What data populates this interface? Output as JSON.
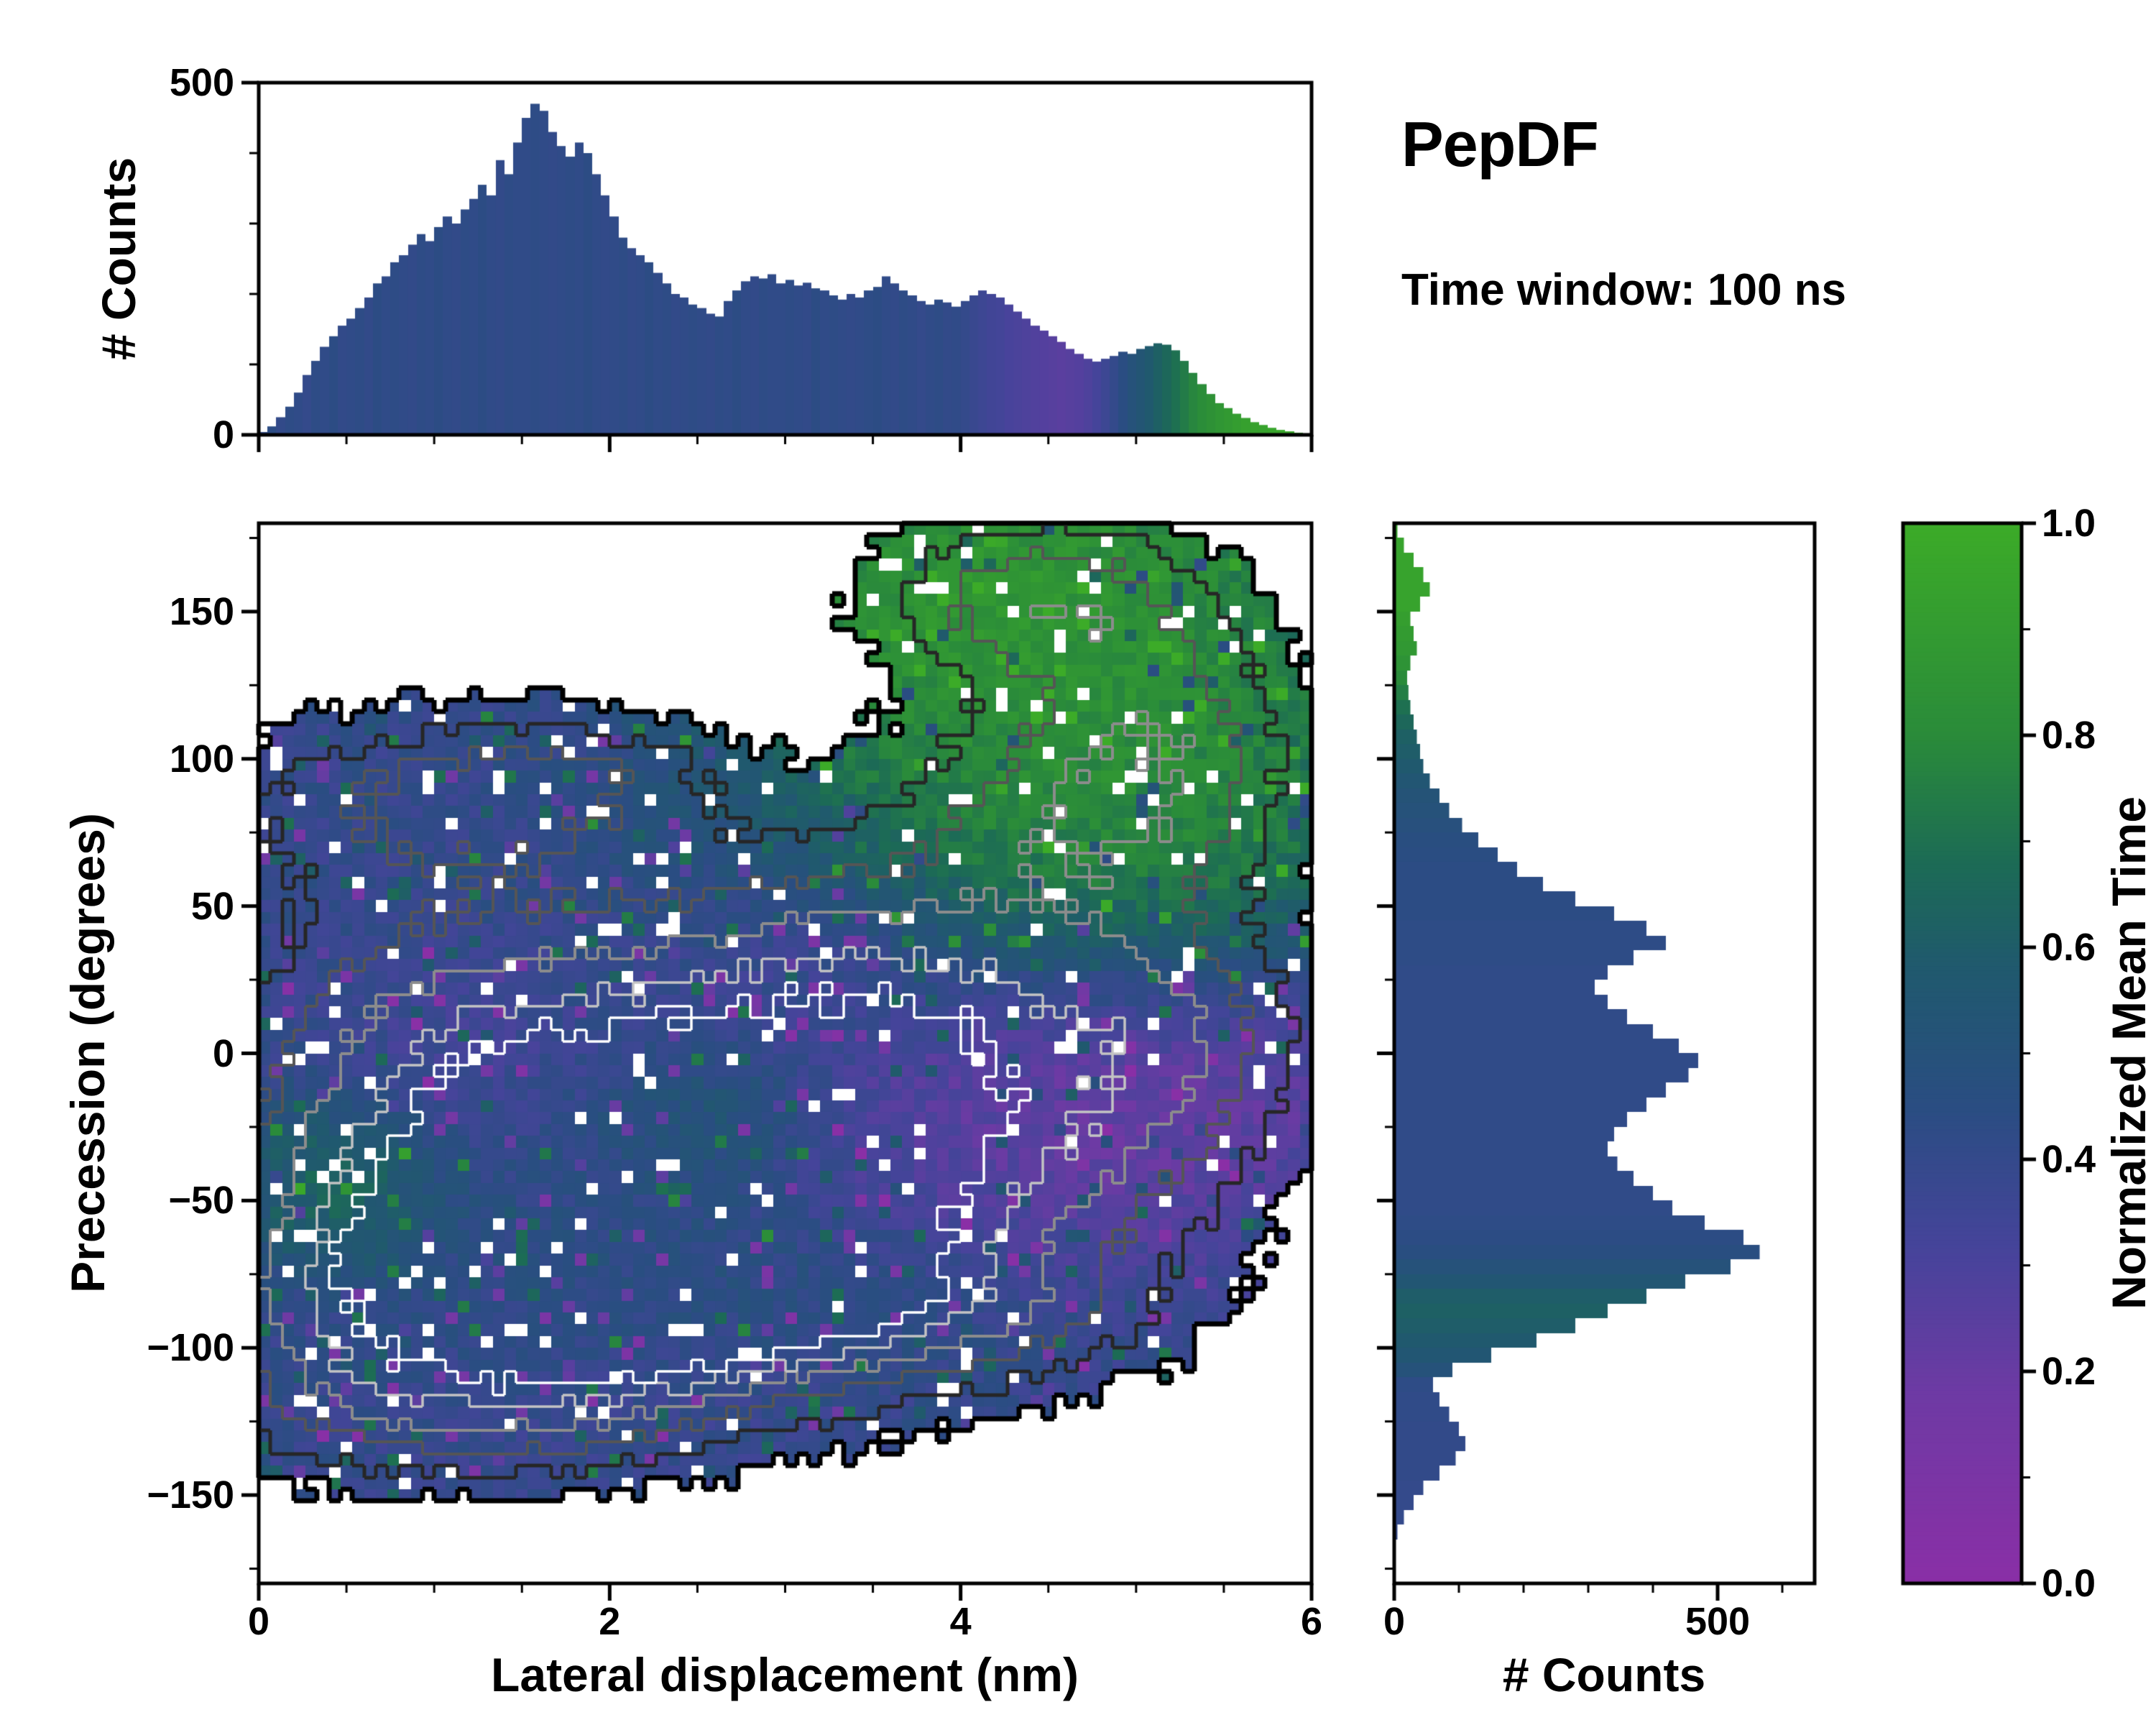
{
  "header": {
    "title": "PepDF",
    "subtitle": "Time window: 100 ns"
  },
  "chart_data": {
    "type": "composite",
    "colormap": {
      "stops": [
        [
          0.0,
          "#8a2fa6"
        ],
        [
          0.18,
          "#6e3aa4"
        ],
        [
          0.32,
          "#45449a"
        ],
        [
          0.45,
          "#2a4d82"
        ],
        [
          0.58,
          "#20596e"
        ],
        [
          0.68,
          "#1c6b55"
        ],
        [
          0.8,
          "#2a8b3a"
        ],
        [
          1.0,
          "#3cab28"
        ]
      ]
    },
    "main": {
      "type": "heatmap",
      "xlabel": "Lateral displacement (nm)",
      "ylabel": "Precession (degrees)",
      "xlim": [
        0,
        6
      ],
      "ylim": [
        -180,
        180
      ],
      "xticks": [
        0,
        2,
        4,
        6
      ],
      "yticks": [
        -150,
        -100,
        -50,
        0,
        50,
        100,
        150
      ],
      "grid_bins": {
        "x": 90,
        "y": 90
      },
      "occupancy_threshold": 0.17,
      "base_value": 0.4,
      "density_blobs": [
        {
          "x": 1.4,
          "y": -60,
          "sx": 1.1,
          "sy": 38,
          "w": 0.95
        },
        {
          "x": 1.0,
          "y": 10,
          "sx": 0.9,
          "sy": 35,
          "w": 0.55
        },
        {
          "x": 0.9,
          "y": 85,
          "sx": 0.9,
          "sy": 22,
          "w": 0.5
        },
        {
          "x": 1.9,
          "y": 95,
          "sx": 0.6,
          "sy": 15,
          "w": 0.3
        },
        {
          "x": 2.6,
          "y": -20,
          "sx": 1.1,
          "sy": 45,
          "w": 0.65
        },
        {
          "x": 3.3,
          "y": 30,
          "sx": 0.9,
          "sy": 30,
          "w": 0.5
        },
        {
          "x": 3.6,
          "y": -60,
          "sx": 1.0,
          "sy": 35,
          "w": 0.6
        },
        {
          "x": 4.6,
          "y": -5,
          "sx": 0.85,
          "sy": 40,
          "w": 0.6
        },
        {
          "x": 5.3,
          "y": 10,
          "sx": 0.5,
          "sy": 30,
          "w": 0.3
        },
        {
          "x": 4.6,
          "y": 85,
          "sx": 0.7,
          "sy": 28,
          "w": 0.55
        },
        {
          "x": 5.3,
          "y": 105,
          "sx": 0.5,
          "sy": 30,
          "w": 0.4
        },
        {
          "x": 4.2,
          "y": 155,
          "sx": 0.55,
          "sy": 20,
          "w": 0.5
        },
        {
          "x": 4.9,
          "y": 150,
          "sx": 0.5,
          "sy": 22,
          "w": 0.35
        },
        {
          "x": 1.4,
          "y": -120,
          "sx": 0.9,
          "sy": 18,
          "w": 0.5
        },
        {
          "x": 2.4,
          "y": -95,
          "sx": 0.9,
          "sy": 18,
          "w": 0.45
        },
        {
          "x": 0.4,
          "y": -90,
          "sx": 0.5,
          "sy": 30,
          "w": 0.4
        },
        {
          "x": 4.0,
          "y": -90,
          "sx": 0.8,
          "sy": 15,
          "w": 0.3
        },
        {
          "x": 1.9,
          "y": -68,
          "sx": 0.35,
          "sy": 14,
          "w": 0.25
        }
      ],
      "value_blobs": [
        {
          "x": 4.6,
          "y": 120,
          "sx": 1.0,
          "sy": 45,
          "v": 0.95,
          "w": 3.0
        },
        {
          "x": 4.2,
          "y": 160,
          "sx": 0.8,
          "sy": 25,
          "v": 0.95,
          "w": 3.0
        },
        {
          "x": 5.1,
          "y": 60,
          "sx": 0.7,
          "sy": 30,
          "v": 0.9,
          "w": 2.0
        },
        {
          "x": 5.0,
          "y": -5,
          "sx": 0.8,
          "sy": 35,
          "v": 0.1,
          "w": 2.2
        },
        {
          "x": 4.0,
          "y": -40,
          "sx": 0.7,
          "sy": 25,
          "v": 0.22,
          "w": 1.2
        },
        {
          "x": 3.1,
          "y": 40,
          "sx": 0.5,
          "sy": 18,
          "v": 0.25,
          "w": 0.8
        },
        {
          "x": 1.1,
          "y": 0,
          "sx": 0.5,
          "sy": 20,
          "v": 0.28,
          "w": 0.8
        },
        {
          "x": 0.45,
          "y": -45,
          "sx": 0.35,
          "sy": 18,
          "v": 0.8,
          "w": 1.5
        },
        {
          "x": 2.6,
          "y": -25,
          "sx": 0.4,
          "sy": 15,
          "v": 0.7,
          "w": 0.8
        },
        {
          "x": 3.3,
          "y": -75,
          "sx": 0.8,
          "sy": 20,
          "v": 0.55,
          "w": 0.8
        },
        {
          "x": 1.5,
          "y": -65,
          "sx": 0.6,
          "sy": 25,
          "v": 0.5,
          "w": 0.6
        },
        {
          "x": 2.2,
          "y": -125,
          "sx": 0.8,
          "sy": 15,
          "v": 0.35,
          "w": 0.6
        },
        {
          "x": 2.9,
          "y": 70,
          "sx": 0.6,
          "sy": 20,
          "v": 0.55,
          "w": 0.6
        }
      ],
      "contour_levels": [
        {
          "level": 0.17,
          "color": "#000000",
          "width": 7
        },
        {
          "level": 0.35,
          "color": "#262626",
          "width": 5
        },
        {
          "level": 0.55,
          "color": "#555555",
          "width": 4
        },
        {
          "level": 0.75,
          "color": "#8c8c8c",
          "width": 4
        },
        {
          "level": 0.95,
          "color": "#c4c4c4",
          "width": 3.5
        },
        {
          "level": 1.08,
          "color": "#ffffff",
          "width": 3.5
        }
      ]
    },
    "top_hist": {
      "type": "bar",
      "ylabel": "# Counts",
      "ylim": [
        0,
        500
      ],
      "yticks": [
        0,
        500
      ],
      "bin_width": 0.05,
      "x_start": 0,
      "counts": [
        4,
        12,
        25,
        40,
        60,
        85,
        105,
        125,
        140,
        155,
        165,
        180,
        195,
        215,
        225,
        245,
        255,
        270,
        285,
        275,
        295,
        310,
        300,
        320,
        335,
        355,
        340,
        390,
        370,
        415,
        450,
        470,
        460,
        430,
        410,
        395,
        415,
        400,
        370,
        340,
        310,
        280,
        265,
        255,
        245,
        230,
        215,
        200,
        195,
        185,
        180,
        172,
        168,
        190,
        205,
        218,
        225,
        222,
        228,
        215,
        220,
        212,
        216,
        208,
        205,
        198,
        192,
        200,
        195,
        205,
        210,
        225,
        215,
        205,
        198,
        190,
        185,
        192,
        188,
        182,
        190,
        198,
        205,
        200,
        195,
        185,
        175,
        165,
        155,
        148,
        140,
        132,
        122,
        115,
        108,
        104,
        108,
        112,
        118,
        115,
        122,
        126,
        130,
        128,
        120,
        105,
        88,
        72,
        58,
        45,
        38,
        30,
        24,
        18,
        14,
        10,
        7,
        5,
        3,
        2
      ],
      "color_values": [
        0.42,
        0.44,
        0.41,
        0.43,
        0.42,
        0.4,
        0.43,
        0.42,
        0.44,
        0.41,
        0.42,
        0.43,
        0.41,
        0.44,
        0.42,
        0.43,
        0.42,
        0.41,
        0.43,
        0.42,
        0.44,
        0.42,
        0.41,
        0.43,
        0.42,
        0.44,
        0.42,
        0.41,
        0.43,
        0.42,
        0.42,
        0.43,
        0.42,
        0.41,
        0.42,
        0.43,
        0.42,
        0.44,
        0.42,
        0.41,
        0.42,
        0.43,
        0.41,
        0.42,
        0.44,
        0.42,
        0.43,
        0.41,
        0.42,
        0.43,
        0.42,
        0.41,
        0.43,
        0.42,
        0.44,
        0.42,
        0.41,
        0.43,
        0.42,
        0.42,
        0.43,
        0.42,
        0.41,
        0.44,
        0.42,
        0.43,
        0.42,
        0.41,
        0.42,
        0.43,
        0.44,
        0.42,
        0.41,
        0.43,
        0.42,
        0.4,
        0.42,
        0.43,
        0.41,
        0.42,
        0.4,
        0.38,
        0.36,
        0.34,
        0.33,
        0.31,
        0.3,
        0.29,
        0.28,
        0.27,
        0.26,
        0.25,
        0.26,
        0.27,
        0.29,
        0.32,
        0.36,
        0.4,
        0.45,
        0.5,
        0.54,
        0.58,
        0.62,
        0.66,
        0.7,
        0.74,
        0.78,
        0.81,
        0.84,
        0.87,
        0.89,
        0.91,
        0.93,
        0.94,
        0.95,
        0.96,
        0.97,
        0.97,
        0.98,
        0.98
      ]
    },
    "right_hist": {
      "type": "bar",
      "xlabel": "# Counts",
      "xlim": [
        0,
        650
      ],
      "xticks": [
        0,
        500
      ],
      "bin_width": 5,
      "y_start": -180,
      "counts": [
        0,
        0,
        2,
        5,
        15,
        30,
        45,
        70,
        95,
        110,
        100,
        85,
        70,
        60,
        90,
        150,
        220,
        280,
        330,
        390,
        450,
        520,
        565,
        540,
        480,
        430,
        400,
        370,
        345,
        330,
        340,
        360,
        390,
        420,
        455,
        470,
        440,
        400,
        360,
        330,
        310,
        330,
        370,
        420,
        390,
        340,
        280,
        230,
        190,
        160,
        130,
        105,
        85,
        70,
        55,
        45,
        40,
        35,
        30,
        25,
        22,
        20,
        25,
        35,
        30,
        25,
        40,
        55,
        45,
        30,
        15,
        5
      ],
      "color_values": [
        0.4,
        0.4,
        0.4,
        0.4,
        0.4,
        0.4,
        0.4,
        0.41,
        0.41,
        0.41,
        0.41,
        0.42,
        0.42,
        0.43,
        0.5,
        0.55,
        0.58,
        0.6,
        0.62,
        0.6,
        0.55,
        0.5,
        0.46,
        0.44,
        0.43,
        0.42,
        0.42,
        0.42,
        0.42,
        0.42,
        0.42,
        0.42,
        0.42,
        0.42,
        0.42,
        0.42,
        0.42,
        0.42,
        0.42,
        0.42,
        0.42,
        0.42,
        0.43,
        0.43,
        0.43,
        0.44,
        0.44,
        0.44,
        0.44,
        0.45,
        0.46,
        0.48,
        0.5,
        0.52,
        0.55,
        0.58,
        0.6,
        0.62,
        0.66,
        0.7,
        0.75,
        0.8,
        0.85,
        0.88,
        0.9,
        0.92,
        0.95,
        0.95,
        0.95,
        0.95,
        0.95,
        0.95
      ]
    },
    "colorbar": {
      "label": "Normalized Mean Time",
      "range": [
        0,
        1
      ],
      "ticks": [
        "0.0",
        "0.2",
        "0.4",
        "0.6",
        "0.8",
        "1.0"
      ]
    }
  }
}
